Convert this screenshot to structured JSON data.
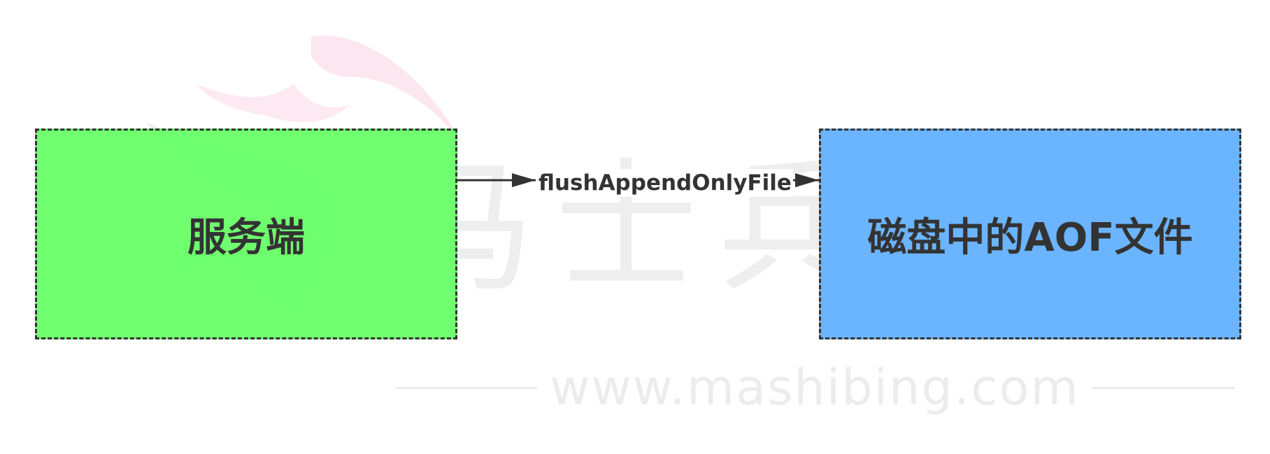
{
  "diagram": {
    "nodes": [
      {
        "id": "server",
        "label": "服务端",
        "fill": "#66ff66",
        "border": "#333333"
      },
      {
        "id": "disk",
        "label": "磁盘中的AOF文件",
        "fill": "#66b2ff",
        "border": "#333333"
      }
    ],
    "edges": [
      {
        "from": "server",
        "to": "disk",
        "label": "flushAppendOnlyFile",
        "color": "#333333"
      }
    ]
  },
  "watermark": {
    "text": "马士兵教育",
    "url": "www.mashibing.com",
    "logo": "mashibing-logo-icon"
  }
}
